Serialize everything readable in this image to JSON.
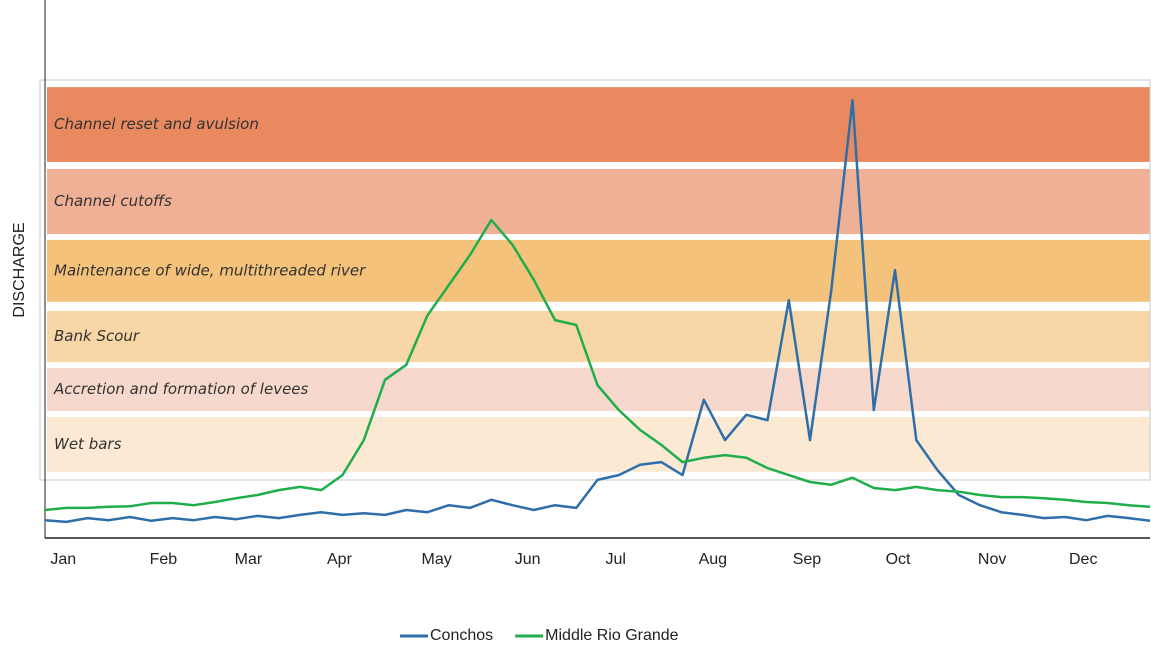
{
  "chart_data": {
    "type": "line",
    "y_label": "DISCHARGE",
    "x": [
      1,
      8,
      15,
      22,
      29,
      36,
      43,
      50,
      57,
      64,
      71,
      78,
      85,
      92,
      99,
      106,
      113,
      120,
      127,
      134,
      141,
      148,
      155,
      162,
      169,
      176,
      183,
      190,
      197,
      204,
      211,
      218,
      225,
      232,
      239,
      246,
      253,
      260,
      267,
      274,
      281,
      288,
      295,
      302,
      309,
      316,
      323,
      330,
      337,
      344,
      351,
      358,
      365
    ],
    "xlim": [
      1,
      365
    ],
    "xticks": [
      {
        "value": 7,
        "label": "Jan"
      },
      {
        "value": 40,
        "label": "Feb"
      },
      {
        "value": 68,
        "label": "Mar"
      },
      {
        "value": 98,
        "label": "Apr"
      },
      {
        "value": 130,
        "label": "May"
      },
      {
        "value": 160,
        "label": "Jun"
      },
      {
        "value": 189,
        "label": "Jul"
      },
      {
        "value": 221,
        "label": "Aug"
      },
      {
        "value": 252,
        "label": "Sep"
      },
      {
        "value": 282,
        "label": "Oct"
      },
      {
        "value": 313,
        "label": "Nov"
      },
      {
        "value": 343,
        "label": "Dec"
      }
    ],
    "ylim": [
      0,
      100
    ],
    "legend": "bottom",
    "bands": [
      {
        "label": "Channel reset and avulsion",
        "range": [
          69.9,
          83.8
        ],
        "color": "#e8895f"
      },
      {
        "label": "Channel cutoffs",
        "range": [
          56.5,
          68.6
        ],
        "color": "#f0b095"
      },
      {
        "label": "Maintenance  of wide, multithreaded river",
        "range": [
          43.9,
          55.4
        ],
        "color": "#f4c27a"
      },
      {
        "label": "Bank Scour",
        "range": [
          32.7,
          42.2
        ],
        "color": "#f8d6a6"
      },
      {
        "label": "Accretion and formation of levees",
        "range": [
          23.6,
          31.6
        ],
        "color": "#f6d9cc"
      },
      {
        "label": "Wet bars",
        "range": [
          12.3,
          22.5
        ],
        "color": "#fbe9d3"
      }
    ],
    "series": [
      {
        "name": "Conchos",
        "color": "#2e6faa",
        "values": [
          3.3,
          3.0,
          3.7,
          3.3,
          3.9,
          3.2,
          3.7,
          3.3,
          3.9,
          3.5,
          4.1,
          3.7,
          4.3,
          4.8,
          4.3,
          4.6,
          4.3,
          5.2,
          4.8,
          6.1,
          5.6,
          7.1,
          6.1,
          5.2,
          6.1,
          5.6,
          10.8,
          11.7,
          13.6,
          14.1,
          11.7,
          25.7,
          18.2,
          22.9,
          21.9,
          44.2,
          18.2,
          46.1,
          81.4,
          23.8,
          49.8,
          18.2,
          12.6,
          8.0,
          6.1,
          4.8,
          4.3,
          3.7,
          3.9,
          3.3,
          4.1,
          3.7,
          3.2
        ]
      },
      {
        "name": "Middle Rio Grande",
        "color": "#1fae4b",
        "values": [
          5.2,
          5.6,
          5.6,
          5.8,
          5.9,
          6.5,
          6.5,
          6.1,
          6.7,
          7.4,
          8.0,
          8.9,
          9.5,
          8.9,
          11.7,
          18.2,
          29.4,
          32.2,
          41.4,
          47.0,
          52.6,
          59.1,
          54.5,
          48.0,
          40.5,
          39.6,
          28.4,
          23.8,
          20.1,
          17.3,
          14.1,
          14.9,
          15.4,
          14.9,
          13.0,
          11.7,
          10.4,
          9.9,
          11.2,
          9.3,
          8.9,
          9.5,
          8.9,
          8.6,
          8.0,
          7.6,
          7.6,
          7.4,
          7.1,
          6.7,
          6.5,
          6.1,
          5.8
        ]
      }
    ]
  }
}
